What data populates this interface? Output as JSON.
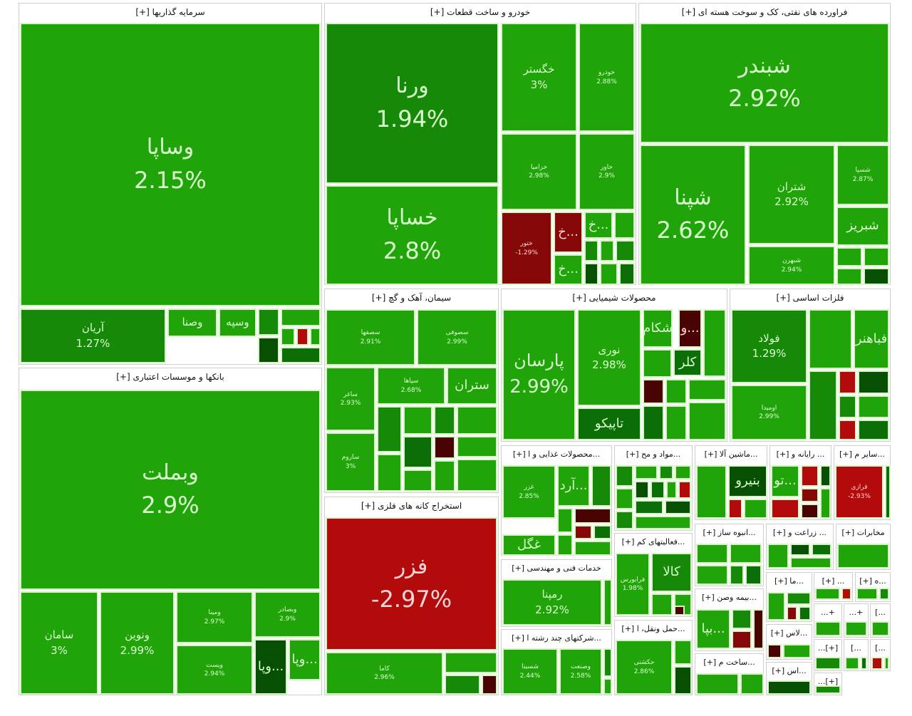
{
  "palette": {
    "g": "#21a40a",
    "m": "#168a08",
    "d": "#0c6e06",
    "vd": "#064f03",
    "r": "#b30b0b",
    "dr": "#850707",
    "mr": "#4a0303",
    "lr": "#e01818"
  },
  "chart_data": {
    "type": "treemap",
    "title": "",
    "sectors": [
      {
        "title": "سرمایه گذاریها [+]",
        "tiles": [
          {
            "symbol": "وساپا",
            "change": "2.15%",
            "color": "g"
          },
          {
            "symbol": "آریان",
            "change": "1.27%",
            "color": "m"
          },
          {
            "symbol": "وصنا",
            "change": "",
            "color": "g"
          },
          {
            "symbol": "وسپه",
            "change": "",
            "color": "g"
          }
        ]
      },
      {
        "title": "بانکها و موسسات اعتباری [+]",
        "tiles": [
          {
            "symbol": "وبملت",
            "change": "2.9%",
            "color": "g"
          },
          {
            "symbol": "سامان",
            "change": "3%",
            "color": "g"
          },
          {
            "symbol": "ونوین",
            "change": "2.99%",
            "color": "g"
          },
          {
            "symbol": "ومینا",
            "change": "2.97%",
            "color": "g"
          },
          {
            "symbol": "وبصادر",
            "change": "2.9%",
            "color": "g"
          },
          {
            "symbol": "ویست",
            "change": "2.94%",
            "color": "g"
          },
          {
            "symbol": "...وپا",
            "change": "",
            "color": "vd"
          },
          {
            "symbol": "...وپا",
            "change": "",
            "color": "g"
          }
        ]
      },
      {
        "title": "خودرو و ساخت قطعات [+]",
        "tiles": [
          {
            "symbol": "ورنا",
            "change": "1.94%",
            "color": "m"
          },
          {
            "symbol": "خساپا",
            "change": "2.8%",
            "color": "g"
          },
          {
            "symbol": "خگستر",
            "change": "3%",
            "color": "g"
          },
          {
            "symbol": "خودرو",
            "change": "2.88%",
            "color": "g"
          },
          {
            "symbol": "خزامیا",
            "change": "2.98%",
            "color": "g"
          },
          {
            "symbol": "خاور",
            "change": "2.9%",
            "color": "g"
          },
          {
            "symbol": "ختور",
            "change": "-1.29%",
            "color": "dr"
          },
          {
            "symbol": "...خ",
            "change": "",
            "color": "dr"
          },
          {
            "symbol": "...خ",
            "change": "",
            "color": "g"
          },
          {
            "symbol": "...خ",
            "change": "",
            "color": "g"
          }
        ]
      },
      {
        "title": "فراورده های نفتی، کک و سوخت هسته ای [+]",
        "tiles": [
          {
            "symbol": "شبندر",
            "change": "2.92%",
            "color": "g"
          },
          {
            "symbol": "شپنا",
            "change": "2.62%",
            "color": "g"
          },
          {
            "symbol": "شتران",
            "change": "2.92%",
            "color": "g"
          },
          {
            "symbol": "شسپا",
            "change": "2.87%",
            "color": "g"
          },
          {
            "symbol": "شبریز",
            "change": "",
            "color": "g"
          },
          {
            "symbol": "شبهرن",
            "change": "2.94%",
            "color": "g"
          }
        ]
      },
      {
        "title": "سیمان، آهک و گچ [+]",
        "tiles": [
          {
            "symbol": "سصفها",
            "change": "2.91%",
            "color": "g"
          },
          {
            "symbol": "سصوفی",
            "change": "2.99%",
            "color": "g"
          },
          {
            "symbol": "ساغر",
            "change": "2.93%",
            "color": "g"
          },
          {
            "symbol": "سپاها",
            "change": "2.68%",
            "color": "g"
          },
          {
            "symbol": "ستران",
            "change": "",
            "color": "g"
          },
          {
            "symbol": "ساروم",
            "change": "3%",
            "color": "g"
          }
        ]
      },
      {
        "title": "استخراج کانه های فلزی [+]",
        "tiles": [
          {
            "symbol": "فزر",
            "change": "-2.97%",
            "color": "r"
          },
          {
            "symbol": "کاما",
            "change": "2.96%",
            "color": "g"
          }
        ]
      },
      {
        "title": "محصولات شیمیایی [+]",
        "tiles": [
          {
            "symbol": "پارسان",
            "change": "2.99%",
            "color": "g"
          },
          {
            "symbol": "نوری",
            "change": "2.98%",
            "color": "g"
          },
          {
            "symbol": "تاپیکو",
            "change": "",
            "color": "d"
          },
          {
            "symbol": "شکام",
            "change": "",
            "color": "g"
          },
          {
            "symbol": "...و",
            "change": "",
            "color": "mr"
          },
          {
            "symbol": "کلر",
            "change": "",
            "color": "d"
          }
        ]
      },
      {
        "title": "فلزات اساسی [+]",
        "tiles": [
          {
            "symbol": "فولاد",
            "change": "1.29%",
            "color": "m"
          },
          {
            "symbol": "فباهنر",
            "change": "",
            "color": "g"
          },
          {
            "symbol": "اومیدا",
            "change": "2.99%",
            "color": "g"
          }
        ]
      },
      {
        "title": "...محصولات غذایی و ا [+]",
        "tiles": [
          {
            "symbol": "غزر",
            "change": "2.85%",
            "color": "g"
          },
          {
            "symbol": "...آرد",
            "change": "",
            "color": "g"
          },
          {
            "symbol": "غگل",
            "change": "",
            "color": "g"
          }
        ]
      },
      {
        "title": "...مواد و مح [+]",
        "tiles": []
      },
      {
        "title": "...ماشین آلا [+]",
        "tiles": [
          {
            "symbol": "بنیرو",
            "change": "",
            "color": "vd"
          }
        ]
      },
      {
        "title": "... رایانه و [+]",
        "tiles": [
          {
            "symbol": "...تو",
            "change": "",
            "color": "g"
          }
        ]
      },
      {
        "title": "...سایر م [+]",
        "tiles": [
          {
            "symbol": "قرازی",
            "change": "-2.93%",
            "color": "r"
          }
        ]
      },
      {
        "title": "خدمات فنی و مهندسی [+]",
        "tiles": [
          {
            "symbol": "رمپنا",
            "change": "2.92%",
            "color": "g"
          }
        ]
      },
      {
        "title": "...شرکتهای چند رشته ا [+]",
        "tiles": [
          {
            "symbol": "شسینا",
            "change": "2.44%",
            "color": "g"
          },
          {
            "symbol": "وصنعت",
            "change": "2.58%",
            "color": "g"
          }
        ]
      },
      {
        "title": "...فعالیتهای کم [+]",
        "tiles": [
          {
            "symbol": "فرابورس",
            "change": "1.98%",
            "color": "g"
          },
          {
            "symbol": "کالا",
            "change": "",
            "color": "m"
          }
        ]
      },
      {
        "title": "...حمل ونقل، ا [+]",
        "tiles": [
          {
            "symbol": "حکشتی",
            "change": "2.86%",
            "color": "g"
          }
        ]
      },
      {
        "title": "...انبوه ساز [+]",
        "tiles": []
      },
      {
        "title": "... زراعت و [+]",
        "tiles": []
      },
      {
        "title": "مخابرات [+]",
        "tiles": []
      },
      {
        "title": "...بیمه وصن [+]",
        "tiles": [
          {
            "symbol": "...بپا",
            "change": "",
            "color": "g"
          }
        ]
      },
      {
        "title": "...ساخت م [+]",
        "tiles": []
      },
      {
        "title": "...ما [+]",
        "tiles": []
      },
      {
        "title": "... [+]",
        "tiles": []
      },
      {
        "title": "...ه [+]",
        "tiles": []
      },
      {
        "title": "...لاس [+]",
        "tiles": []
      },
      {
        "title": "...اس [+]",
        "tiles": []
      },
      {
        "title": "+...",
        "tiles": []
      },
      {
        "title": "+...",
        "tiles": []
      },
      {
        "title": "...]",
        "tiles": []
      },
      {
        "title": "[+]...",
        "tiles": []
      },
      {
        "title": "...]",
        "tiles": []
      },
      {
        "title": "...]",
        "tiles": []
      },
      {
        "title": "[+]...",
        "tiles": []
      }
    ]
  }
}
